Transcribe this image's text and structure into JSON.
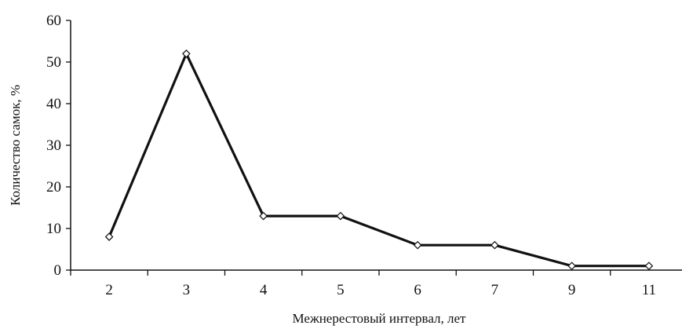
{
  "chart_data": {
    "type": "line",
    "categories": [
      "2",
      "3",
      "4",
      "5",
      "6",
      "7",
      "9",
      "11"
    ],
    "series": [
      {
        "values": [
          8,
          52,
          13,
          13,
          6,
          6,
          1,
          1
        ]
      }
    ],
    "xlabel": "Межнерестовый интервал, лет",
    "ylabel": "Количество самок, %",
    "ylim": [
      0,
      60
    ],
    "yticks": [
      0,
      10,
      20,
      30,
      40,
      50,
      60
    ],
    "grid": false,
    "marker": "diamond",
    "line_color": "#111111"
  }
}
